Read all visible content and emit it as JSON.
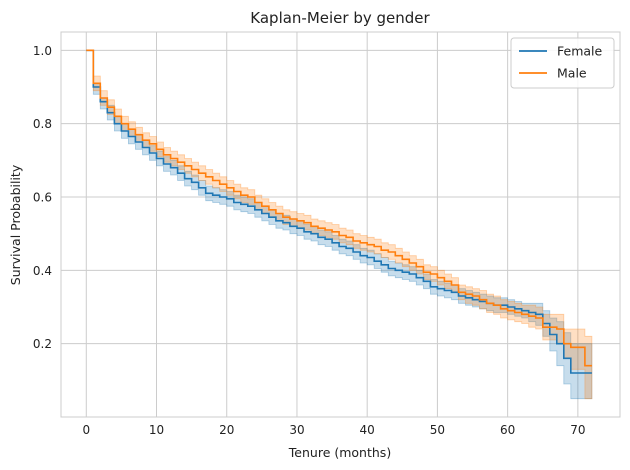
{
  "chart_data": {
    "type": "line",
    "title": "Kaplan-Meier by gender",
    "xlabel": "Tenure (months)",
    "ylabel": "Survival Probability",
    "xlim": [
      -3.6,
      76
    ],
    "ylim": [
      0.0,
      1.05
    ],
    "x_ticks": [
      0,
      10,
      20,
      30,
      40,
      50,
      60,
      70
    ],
    "y_ticks": [
      0.2,
      0.4,
      0.6,
      0.8,
      1.0
    ],
    "x_tick_labels": [
      "0",
      "10",
      "20",
      "30",
      "40",
      "50",
      "60",
      "70"
    ],
    "y_tick_labels": [
      "0.2",
      "0.4",
      "0.6",
      "0.8",
      "1.0"
    ],
    "grid": true,
    "legend_position": "top-right",
    "step": "post",
    "series": [
      {
        "name": "Female",
        "color": "#1f77b4",
        "ci_color": "#1f77b4",
        "x": [
          0,
          1,
          2,
          3,
          4,
          5,
          6,
          7,
          8,
          9,
          10,
          11,
          12,
          13,
          14,
          15,
          16,
          17,
          18,
          19,
          20,
          21,
          22,
          23,
          24,
          25,
          26,
          27,
          28,
          29,
          30,
          31,
          32,
          33,
          34,
          35,
          36,
          37,
          38,
          39,
          40,
          41,
          42,
          43,
          44,
          45,
          46,
          47,
          48,
          49,
          50,
          51,
          52,
          53,
          54,
          55,
          56,
          57,
          58,
          59,
          60,
          61,
          62,
          63,
          64,
          65,
          66,
          67,
          68,
          69,
          70,
          71,
          72
        ],
        "y": [
          1.0,
          0.9,
          0.86,
          0.83,
          0.8,
          0.78,
          0.765,
          0.75,
          0.735,
          0.72,
          0.705,
          0.69,
          0.68,
          0.665,
          0.65,
          0.64,
          0.625,
          0.61,
          0.605,
          0.6,
          0.595,
          0.585,
          0.58,
          0.575,
          0.565,
          0.555,
          0.545,
          0.535,
          0.53,
          0.52,
          0.515,
          0.505,
          0.5,
          0.49,
          0.485,
          0.475,
          0.465,
          0.46,
          0.45,
          0.44,
          0.435,
          0.425,
          0.415,
          0.405,
          0.4,
          0.395,
          0.39,
          0.38,
          0.37,
          0.355,
          0.35,
          0.345,
          0.34,
          0.33,
          0.325,
          0.32,
          0.315,
          0.31,
          0.305,
          0.305,
          0.3,
          0.295,
          0.29,
          0.285,
          0.28,
          0.255,
          0.225,
          0.2,
          0.16,
          0.12,
          0.12,
          0.12,
          0.12
        ],
        "ci_lower": [
          1.0,
          0.88,
          0.84,
          0.81,
          0.78,
          0.76,
          0.745,
          0.73,
          0.715,
          0.7,
          0.685,
          0.67,
          0.66,
          0.645,
          0.63,
          0.62,
          0.605,
          0.59,
          0.585,
          0.58,
          0.575,
          0.565,
          0.56,
          0.555,
          0.545,
          0.535,
          0.525,
          0.515,
          0.51,
          0.5,
          0.495,
          0.485,
          0.48,
          0.47,
          0.465,
          0.455,
          0.445,
          0.44,
          0.43,
          0.42,
          0.415,
          0.405,
          0.395,
          0.385,
          0.38,
          0.375,
          0.37,
          0.36,
          0.35,
          0.335,
          0.33,
          0.325,
          0.32,
          0.31,
          0.305,
          0.3,
          0.295,
          0.29,
          0.285,
          0.285,
          0.28,
          0.275,
          0.27,
          0.26,
          0.25,
          0.22,
          0.18,
          0.14,
          0.09,
          0.05,
          0.05,
          0.05,
          0.05
        ],
        "ci_upper": [
          1.0,
          0.91,
          0.87,
          0.85,
          0.82,
          0.8,
          0.785,
          0.77,
          0.755,
          0.74,
          0.725,
          0.71,
          0.7,
          0.685,
          0.67,
          0.66,
          0.645,
          0.63,
          0.625,
          0.62,
          0.615,
          0.605,
          0.6,
          0.595,
          0.585,
          0.575,
          0.565,
          0.555,
          0.55,
          0.54,
          0.535,
          0.525,
          0.52,
          0.51,
          0.505,
          0.495,
          0.485,
          0.48,
          0.47,
          0.46,
          0.455,
          0.445,
          0.435,
          0.425,
          0.42,
          0.415,
          0.41,
          0.4,
          0.39,
          0.375,
          0.37,
          0.365,
          0.36,
          0.35,
          0.345,
          0.34,
          0.335,
          0.33,
          0.325,
          0.325,
          0.32,
          0.315,
          0.31,
          0.31,
          0.31,
          0.29,
          0.27,
          0.26,
          0.23,
          0.2,
          0.2,
          0.2,
          0.2
        ]
      },
      {
        "name": "Male",
        "color": "#ff7f0e",
        "ci_color": "#ff7f0e",
        "x": [
          0,
          1,
          2,
          3,
          4,
          5,
          6,
          7,
          8,
          9,
          10,
          11,
          12,
          13,
          14,
          15,
          16,
          17,
          18,
          19,
          20,
          21,
          22,
          23,
          24,
          25,
          26,
          27,
          28,
          29,
          30,
          31,
          32,
          33,
          34,
          35,
          36,
          37,
          38,
          39,
          40,
          41,
          42,
          43,
          44,
          45,
          46,
          47,
          48,
          49,
          50,
          51,
          52,
          53,
          54,
          55,
          56,
          57,
          58,
          59,
          60,
          61,
          62,
          63,
          64,
          65,
          66,
          67,
          68,
          69,
          70,
          71,
          72
        ],
        "y": [
          1.0,
          0.91,
          0.87,
          0.845,
          0.82,
          0.8,
          0.785,
          0.77,
          0.755,
          0.745,
          0.73,
          0.715,
          0.705,
          0.695,
          0.685,
          0.675,
          0.665,
          0.655,
          0.645,
          0.635,
          0.625,
          0.615,
          0.605,
          0.6,
          0.585,
          0.575,
          0.565,
          0.555,
          0.545,
          0.54,
          0.535,
          0.53,
          0.52,
          0.515,
          0.51,
          0.505,
          0.495,
          0.49,
          0.48,
          0.475,
          0.47,
          0.465,
          0.455,
          0.45,
          0.44,
          0.43,
          0.42,
          0.41,
          0.395,
          0.39,
          0.38,
          0.37,
          0.36,
          0.34,
          0.335,
          0.33,
          0.32,
          0.31,
          0.305,
          0.295,
          0.29,
          0.285,
          0.28,
          0.275,
          0.27,
          0.245,
          0.245,
          0.24,
          0.2,
          0.19,
          0.19,
          0.14,
          0.14
        ],
        "ci_lower": [
          1.0,
          0.89,
          0.85,
          0.825,
          0.8,
          0.78,
          0.765,
          0.75,
          0.735,
          0.725,
          0.71,
          0.695,
          0.685,
          0.675,
          0.665,
          0.655,
          0.645,
          0.635,
          0.625,
          0.615,
          0.605,
          0.595,
          0.585,
          0.58,
          0.565,
          0.555,
          0.545,
          0.535,
          0.525,
          0.52,
          0.515,
          0.51,
          0.5,
          0.495,
          0.49,
          0.485,
          0.475,
          0.47,
          0.46,
          0.455,
          0.45,
          0.445,
          0.435,
          0.43,
          0.42,
          0.41,
          0.4,
          0.39,
          0.375,
          0.37,
          0.36,
          0.35,
          0.34,
          0.32,
          0.31,
          0.305,
          0.295,
          0.285,
          0.28,
          0.27,
          0.265,
          0.26,
          0.255,
          0.245,
          0.24,
          0.21,
          0.21,
          0.2,
          0.16,
          0.13,
          0.13,
          0.05,
          0.05
        ],
        "ci_upper": [
          1.0,
          0.93,
          0.89,
          0.865,
          0.84,
          0.82,
          0.805,
          0.79,
          0.775,
          0.765,
          0.75,
          0.735,
          0.725,
          0.715,
          0.705,
          0.695,
          0.685,
          0.675,
          0.665,
          0.655,
          0.645,
          0.635,
          0.625,
          0.62,
          0.605,
          0.595,
          0.585,
          0.575,
          0.565,
          0.56,
          0.555,
          0.55,
          0.54,
          0.535,
          0.53,
          0.525,
          0.515,
          0.51,
          0.5,
          0.495,
          0.49,
          0.485,
          0.475,
          0.47,
          0.46,
          0.45,
          0.44,
          0.43,
          0.415,
          0.41,
          0.4,
          0.39,
          0.38,
          0.36,
          0.355,
          0.35,
          0.345,
          0.335,
          0.33,
          0.32,
          0.315,
          0.31,
          0.305,
          0.305,
          0.3,
          0.28,
          0.28,
          0.28,
          0.24,
          0.24,
          0.24,
          0.22,
          0.22
        ]
      }
    ]
  }
}
